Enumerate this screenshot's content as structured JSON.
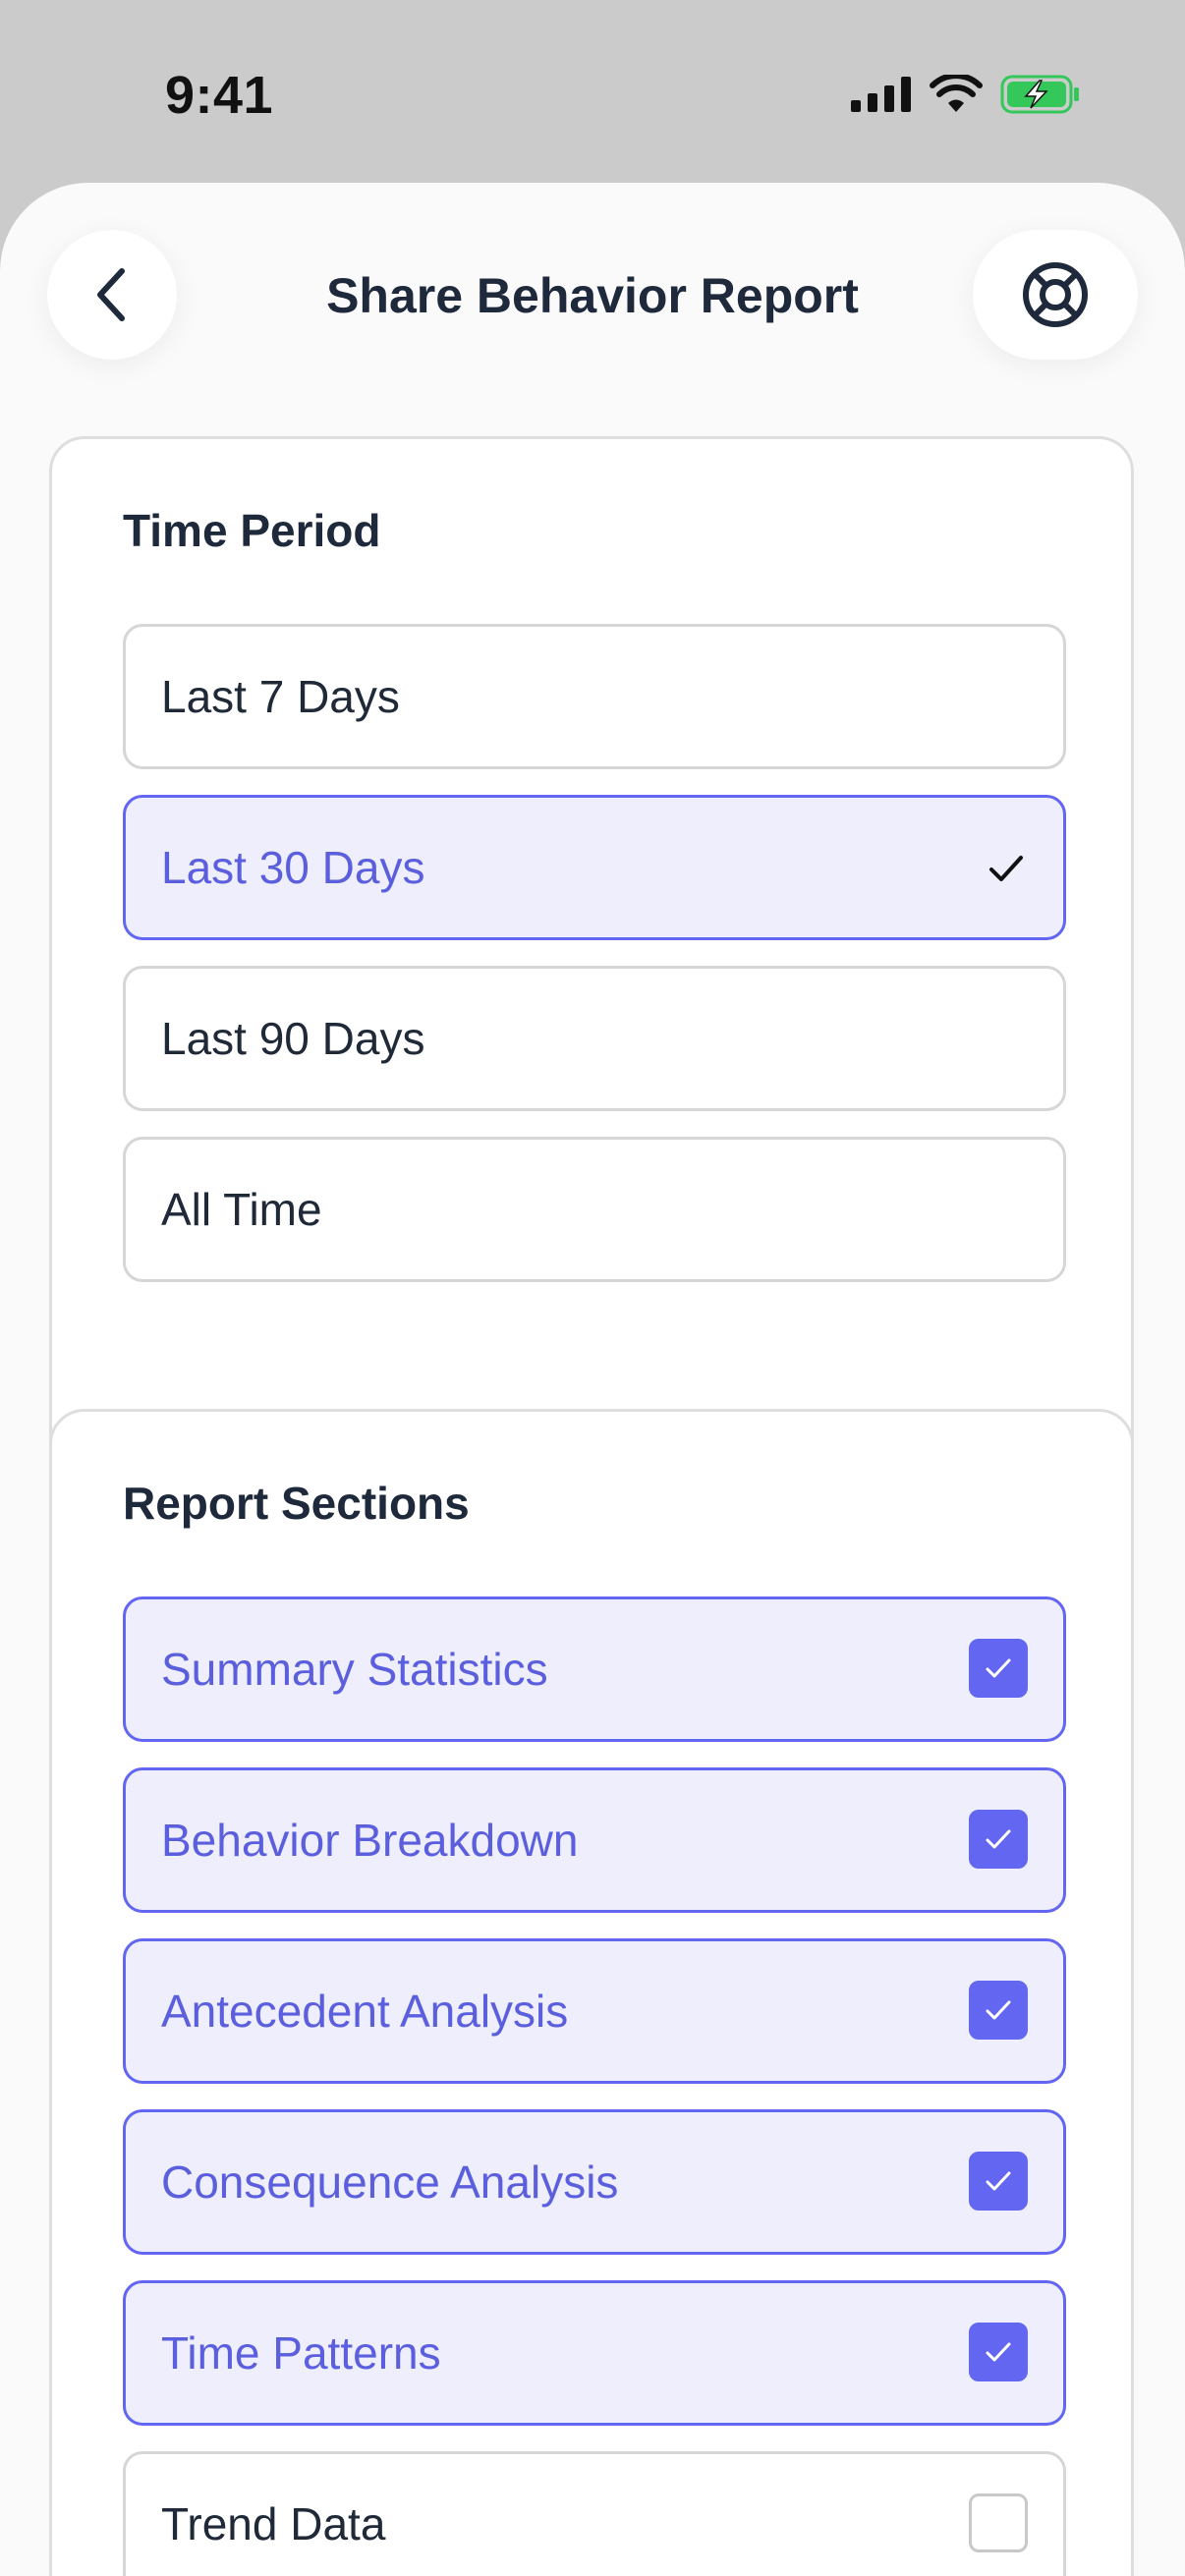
{
  "status_bar": {
    "time": "9:41",
    "icons": [
      "signal-icon",
      "wifi-icon",
      "battery-charging-icon"
    ],
    "battery_color": "#34c759"
  },
  "header": {
    "title": "Share Behavior Report",
    "back_icon": "chevron-left-icon",
    "help_icon": "lifebuoy-icon"
  },
  "time_period": {
    "title": "Time Period",
    "options": [
      {
        "label": "Last 7 Days",
        "selected": false
      },
      {
        "label": "Last 30 Days",
        "selected": true
      },
      {
        "label": "Last 90 Days",
        "selected": false
      },
      {
        "label": "All Time",
        "selected": false
      }
    ]
  },
  "report_sections": {
    "title": "Report Sections",
    "items": [
      {
        "label": "Summary Statistics",
        "checked": true
      },
      {
        "label": "Behavior Breakdown",
        "checked": true
      },
      {
        "label": "Antecedent Analysis",
        "checked": true
      },
      {
        "label": "Consequence Analysis",
        "checked": true
      },
      {
        "label": "Time Patterns",
        "checked": true
      },
      {
        "label": "Trend Data",
        "checked": false
      }
    ]
  },
  "colors": {
    "accent": "#6366f1",
    "accent_bg": "#eeeefc",
    "text": "#1e293b"
  }
}
